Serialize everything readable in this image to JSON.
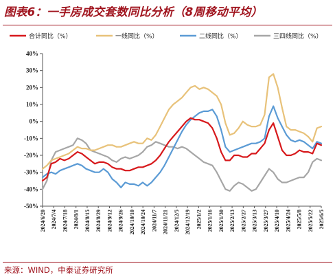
{
  "title": "图表6：一手房成交套数同比分析（8周移动平均）",
  "source": "来源：WIND，中泰证券研究所",
  "chart_data": {
    "type": "line",
    "title": "图表6：一手房成交套数同比分析（8周移动平均）",
    "xlabel": "",
    "ylabel": "",
    "ylim": [
      -50,
      40
    ],
    "y_ticks": [
      40,
      30,
      20,
      10,
      0,
      -10,
      -20,
      -30,
      -40,
      -50
    ],
    "y_tick_labels": [
      "40%",
      "30%",
      "20%",
      "10%",
      "0%",
      "-10%",
      "-20%",
      "-30%",
      "-40%",
      "-50%"
    ],
    "x_tick_labels": [
      "2024/6/20",
      "2024/7/4",
      "2024/7/18",
      "2024/8/1",
      "2024/8/15",
      "2024/8/29",
      "2024/9/12",
      "2024/9/26",
      "2024/10/10",
      "2024/10/24",
      "2024/11/7",
      "2024/11/21",
      "2024/12/5",
      "2024/12/19",
      "2025/1/2",
      "2025/1/16",
      "2025/1/30",
      "2025/2/13",
      "2025/2/27",
      "2025/3/13",
      "2025/3/27",
      "2025/4/10",
      "2025/4/24",
      "2025/5/8",
      "2025/5/22",
      "2025/6/5"
    ],
    "grid": false,
    "legend_position": "top",
    "series": [
      {
        "name": "合计同比（%）",
        "color": "#d7191c",
        "values": [
          -35,
          -33,
          -25,
          -24,
          -22,
          -23,
          -22,
          -20,
          -18,
          -19,
          -21,
          -23,
          -25,
          -24,
          -24,
          -25,
          -27,
          -28,
          -28,
          -29,
          -29,
          -28,
          -27,
          -27,
          -26,
          -25,
          -23,
          -20,
          -16,
          -12,
          -9,
          -6,
          -3,
          0,
          2,
          1,
          1,
          0,
          -1,
          -4,
          -10,
          -18,
          -23,
          -23,
          -20,
          -20,
          -21,
          -21,
          -19,
          -19,
          -16,
          -13,
          -5,
          -1,
          -9,
          -17,
          -20,
          -20,
          -19,
          -17,
          -18,
          -18,
          -19,
          -13,
          -14
        ]
      },
      {
        "name": "一线同比（%）",
        "color": "#e8c27a",
        "values": [
          -28,
          -26,
          -23,
          -22,
          -21,
          -20,
          -19,
          -17,
          -15,
          -16,
          -16,
          -17,
          -17,
          -16,
          -15,
          -14,
          -14,
          -15,
          -15,
          -14,
          -13,
          -12,
          -13,
          -13,
          -10,
          -11,
          -8,
          -3,
          2,
          7,
          10,
          12,
          14,
          17,
          20,
          21,
          19,
          20,
          19,
          17,
          15,
          10,
          -1,
          -8,
          -7,
          -4,
          0,
          -2,
          -3,
          -3,
          -2,
          4,
          26,
          28,
          20,
          8,
          -3,
          -5,
          -5,
          -6,
          -7,
          -9,
          -12,
          -4,
          -3
        ]
      },
      {
        "name": "二线同比（%）",
        "color": "#5b9bd5",
        "values": [
          -33,
          -31,
          -30,
          -31,
          -29,
          -28,
          -27,
          -26,
          -25,
          -26,
          -28,
          -29,
          -30,
          -30,
          -28,
          -30,
          -34,
          -36,
          -39,
          -36,
          -37,
          -37,
          -38,
          -36,
          -38,
          -36,
          -33,
          -30,
          -26,
          -21,
          -16,
          -11,
          -6,
          -2,
          1,
          3,
          5,
          6,
          6,
          7,
          3,
          -5,
          -15,
          -18,
          -17,
          -16,
          -15,
          -14,
          -13,
          -13,
          -12,
          -10,
          3,
          9,
          2,
          -3,
          -8,
          -11,
          -12,
          -11,
          -12,
          -14,
          -16,
          -12,
          -13
        ]
      },
      {
        "name": "三四线同比（%）",
        "color": "#a6a6a6",
        "values": [
          -40,
          -35,
          -23,
          -18,
          -17,
          -16,
          -15,
          -14,
          -10,
          -11,
          -13,
          -17,
          -18,
          -19,
          -20,
          -21,
          -23,
          -24,
          -22,
          -21,
          -22,
          -21,
          -20,
          -18,
          -15,
          -14,
          -12,
          -13,
          -14,
          -15,
          -15,
          -16,
          -15,
          -16,
          -18,
          -20,
          -22,
          -24,
          -25,
          -26,
          -30,
          -35,
          -40,
          -41,
          -38,
          -36,
          -37,
          -39,
          -41,
          -40,
          -36,
          -32,
          -28,
          -30,
          -34,
          -36,
          -36,
          -35,
          -34,
          -33,
          -33,
          -30,
          -24,
          -22,
          -23
        ]
      }
    ]
  }
}
